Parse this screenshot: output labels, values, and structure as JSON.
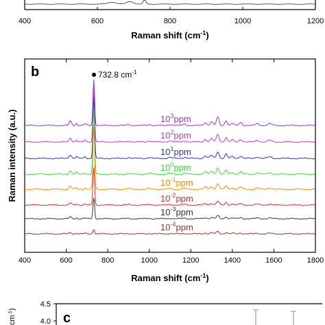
{
  "panels": {
    "a": {
      "xlabel": "Raman shift (cm",
      "xlabel_sup": "-1",
      "xlabel_end": ")",
      "xticks": [
        "400",
        "600",
        "800",
        "1000",
        "1200"
      ]
    },
    "b": {
      "label": "b",
      "annotation": "732.8 cm",
      "annotation_sup": "-1",
      "ylabel": "Raman intensity (a.u.)",
      "xlabel": "Raman shift (cm",
      "xlabel_sup": "-1",
      "xlabel_end": ")",
      "xticks": [
        "400",
        "600",
        "800",
        "1000",
        "1200",
        "1400",
        "1600",
        "1800"
      ]
    },
    "c": {
      "label": "c",
      "yticks": [
        "4.5",
        "4.0"
      ],
      "ylabel_fragment": "×cm",
      "ylabel_fragment_sup": "-1",
      "ylabel_fragment_end": ")"
    }
  },
  "chart_data": [
    {
      "type": "line",
      "panel": "a",
      "xlim": [
        400,
        1200
      ],
      "xlabel": "Raman shift (cm-1)"
    },
    {
      "type": "line",
      "panel": "b",
      "xlim": [
        400,
        1800
      ],
      "xlabel": "Raman shift (cm-1)",
      "ylabel": "Raman intensity (a.u.)",
      "peak_annotation": {
        "x": 732.8,
        "label": "732.8 cm-1"
      },
      "series": [
        {
          "name": "10^3 ppm",
          "base": "10",
          "exp": "3",
          "unit": "ppm",
          "color": "#9933cc",
          "peak": 1.0
        },
        {
          "name": "10^2 ppm",
          "base": "10",
          "exp": "2",
          "unit": "ppm",
          "color": "#cc33cc",
          "peak": 0.88
        },
        {
          "name": "10^1 ppm",
          "base": "10",
          "exp": "1",
          "unit": "ppm",
          "color": "#2233cc",
          "peak": 0.78
        },
        {
          "name": "10^0 ppm",
          "base": "10",
          "exp": "0",
          "unit": "ppm",
          "color": "#33dd33",
          "peak": 0.7
        },
        {
          "name": "10^-1 ppm",
          "base": "10",
          "exp": "-1",
          "unit": "ppm",
          "color": "#ff8800",
          "peak": 0.58
        },
        {
          "name": "10^-2 ppm",
          "base": "10",
          "exp": "-2",
          "unit": "ppm",
          "color": "#ee2222",
          "peak": 0.3
        },
        {
          "name": "10^-3 ppm",
          "base": "10",
          "exp": "-3",
          "unit": "ppm",
          "color": "#333333",
          "peak": 0.15
        },
        {
          "name": "10^-4 ppm",
          "base": "10",
          "exp": "-4",
          "unit": "ppm",
          "color": "#993322",
          "peak": 0.03
        }
      ]
    },
    {
      "type": "bar",
      "panel": "c",
      "ylim": [
        4.0,
        4.5
      ]
    }
  ]
}
